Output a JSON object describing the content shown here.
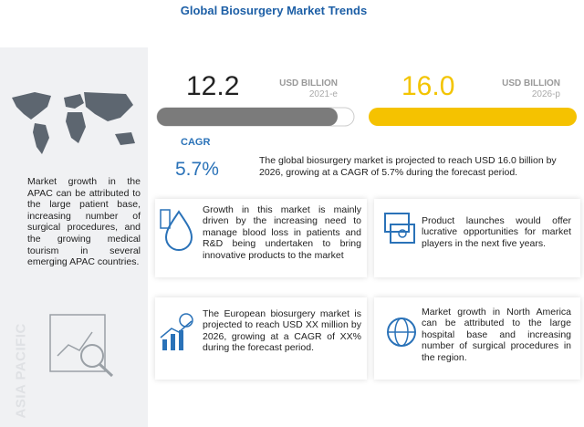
{
  "header": {
    "title": "Global Biosurgery Market Trends"
  },
  "region": {
    "label": "ASIA PACIFIC",
    "text": "Market growth in the APAC can be attributed to the large patient base, increasing number of surgical procedures, and the growing medical tourism in several emerging APAC countries."
  },
  "metrics": [
    {
      "value": "12.2",
      "unit": "USD BILLION",
      "year": "2021-e"
    },
    {
      "value": "16.0",
      "unit": "USD BILLION",
      "year": "2026-p"
    }
  ],
  "cagr": {
    "label": "CAGR",
    "value": "5.7%",
    "text": "The global biosurgery market is projected to reach USD 16.0 billion by 2026, growing at a CAGR of 5.7% during the forecast period."
  },
  "cards": [
    {
      "text": "Growth in this market is mainly driven by the increasing need to manage blood loss in patients and R&D being undertaken to bring innovative products to the market"
    },
    {
      "text": "Product launches would offer lucrative opportunities for market players in the next five years."
    },
    {
      "text": "The European biosurgery market is projected to reach USD XX million by 2026, growing at a CAGR of XX% during the forecast period."
    },
    {
      "text": "Market growth in North America can be attributed to the large hospital base and increasing number of surgical procedures in the region."
    }
  ]
}
